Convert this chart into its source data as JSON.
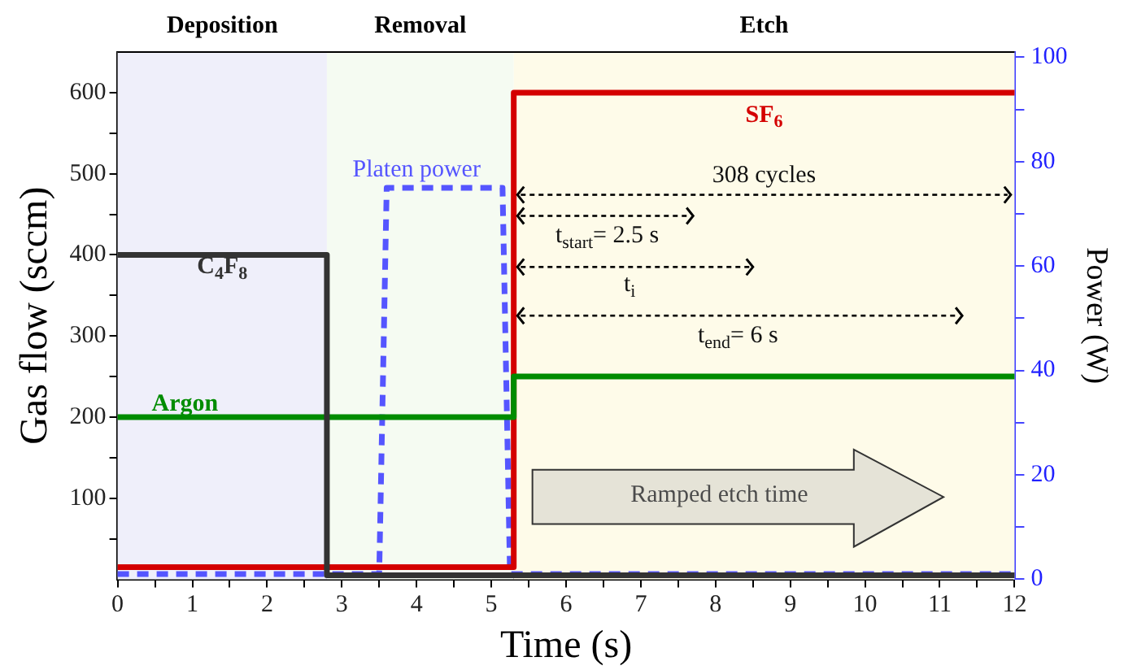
{
  "chart_data": {
    "type": "step",
    "xlabel": "Time (s)",
    "ylabel": "Gas flow (sccm)",
    "y2label": "Power (W)",
    "xlim": [
      0,
      12
    ],
    "xticks": [
      0,
      {
        "value": 0.5,
        "label": null
      },
      1,
      {
        "value": 1.5,
        "label": null
      },
      2,
      {
        "value": 2.5,
        "label": null
      },
      3,
      {
        "value": 3.5,
        "label": null
      },
      4,
      {
        "value": 4.5,
        "label": null
      },
      5,
      {
        "value": 5.5,
        "label": null
      },
      6,
      {
        "value": 6.5,
        "label": null
      },
      7,
      {
        "value": 7.5,
        "label": null
      },
      8,
      {
        "value": 8.5,
        "label": null
      },
      9,
      {
        "value": 9.5,
        "label": null
      },
      10,
      {
        "value": 10.5,
        "label": null
      },
      11,
      {
        "value": 11.5,
        "label": null
      },
      12
    ],
    "ylim": [
      0,
      650
    ],
    "yticks": [
      {
        "value": 50,
        "label": null
      },
      100,
      {
        "value": 150,
        "label": null
      },
      200,
      {
        "value": 250,
        "label": null
      },
      300,
      {
        "value": 350,
        "label": null
      },
      400,
      {
        "value": 450,
        "label": null
      },
      500,
      {
        "value": 550,
        "label": null
      },
      600
    ],
    "y2lim": [
      0,
      101
    ],
    "y2ticks": [
      0,
      {
        "value": 10,
        "label": null
      },
      20,
      {
        "value": 30,
        "label": null
      },
      40,
      {
        "value": 50,
        "label": null
      },
      60,
      {
        "value": 70,
        "label": null
      },
      80,
      {
        "value": 90,
        "label": null
      },
      100
    ],
    "series": [
      {
        "name": "C$_{4}$F$_{8}$",
        "color": "#333333",
        "x": [
          0,
          2.8,
          2.8,
          12
        ],
        "values": [
          400,
          400,
          5,
          5
        ]
      },
      {
        "name": "Argon",
        "color": "#008c00",
        "x": [
          0,
          5.3,
          12
        ],
        "values": [
          200,
          250,
          250
        ]
      },
      {
        "name": "SF$_{6}$",
        "color": "#d40000",
        "x": [
          0,
          5.3,
          12
        ],
        "values": [
          15,
          600,
          600
        ]
      },
      {
        "name": "Platen power",
        "type": "line",
        "axis": "y2",
        "line_style": "dashed",
        "color": "#5555ff",
        "x": [
          0,
          3.5,
          3.6,
          5.15,
          5.25,
          12
        ],
        "values": [
          1,
          1,
          75,
          75,
          1,
          1
        ]
      }
    ],
    "bands": [
      {
        "axis": "x",
        "from": 0,
        "to": 2.8,
        "label": "Deposition",
        "color": "#efeffa"
      },
      {
        "axis": "x",
        "from": 2.8,
        "to": 5.3,
        "label": "Removal",
        "color": "#f5fbf2"
      },
      {
        "axis": "x",
        "from": 5.3,
        "to": 12,
        "label": "Etch",
        "color": "#fefbe9"
      }
    ],
    "annotations": [
      "308 cycles",
      "t$_{start}$= 2.5 s",
      "t$_{i}$",
      "t$_{end}$= 6 s",
      "Ramped etch time"
    ],
    "legend": false,
    "grid": false
  }
}
